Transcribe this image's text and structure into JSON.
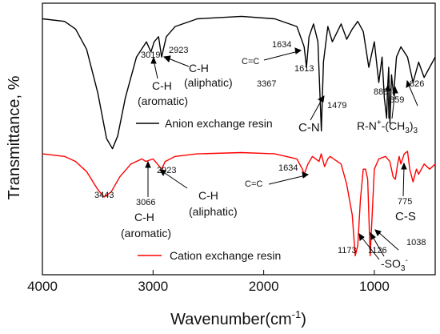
{
  "chart_data": {
    "type": "line",
    "xlabel": "Wavenumber(cm-1)",
    "xlabel_main": "Wavenumber(cm",
    "xlabel_sup": "-1",
    "xlabel_close": ")",
    "ylabel": "Transmittance, %",
    "xlim": [
      4000,
      450
    ],
    "x_ticks": [
      4000,
      3000,
      2000,
      1000
    ],
    "x_tick_labels": [
      "4000",
      "3000",
      "2000",
      "1000"
    ],
    "y_ticks_shown": false,
    "grid": false,
    "legend_placement": "inline, below each curve",
    "series": [
      {
        "name": "Anion exchange resin",
        "color": "#000000",
        "points": [
          [
            4000,
            0.03
          ],
          [
            3800,
            0.04
          ],
          [
            3700,
            0.07
          ],
          [
            3600,
            0.15
          ],
          [
            3500,
            0.32
          ],
          [
            3420,
            0.5
          ],
          [
            3367,
            0.54
          ],
          [
            3320,
            0.49
          ],
          [
            3250,
            0.34
          ],
          [
            3150,
            0.18
          ],
          [
            3060,
            0.12
          ],
          [
            3019,
            0.16
          ],
          [
            2990,
            0.12
          ],
          [
            2950,
            0.1
          ],
          [
            2923,
            0.18
          ],
          [
            2880,
            0.1
          ],
          [
            2800,
            0.06
          ],
          [
            2600,
            0.03
          ],
          [
            2200,
            0.02
          ],
          [
            1900,
            0.03
          ],
          [
            1700,
            0.06
          ],
          [
            1650,
            0.12
          ],
          [
            1634,
            0.14
          ],
          [
            1613,
            0.22
          ],
          [
            1590,
            0.1
          ],
          [
            1550,
            0.05
          ],
          [
            1510,
            0.12
          ],
          [
            1479,
            0.47
          ],
          [
            1460,
            0.2
          ],
          [
            1420,
            0.06
          ],
          [
            1380,
            0.12
          ],
          [
            1300,
            0.05
          ],
          [
            1250,
            0.11
          ],
          [
            1200,
            0.07
          ],
          [
            1150,
            0.04
          ],
          [
            1100,
            0.08
          ],
          [
            1050,
            0.22
          ],
          [
            1000,
            0.12
          ],
          [
            960,
            0.28
          ],
          [
            930,
            0.18
          ],
          [
            910,
            0.34
          ],
          [
            889,
            0.42
          ],
          [
            880,
            0.3
          ],
          [
            870,
            0.22
          ],
          [
            859,
            0.44
          ],
          [
            845,
            0.25
          ],
          [
            826,
            0.33
          ],
          [
            800,
            0.18
          ],
          [
            760,
            0.14
          ],
          [
            700,
            0.18
          ],
          [
            650,
            0.28
          ],
          [
            600,
            0.2
          ],
          [
            550,
            0.26
          ],
          [
            500,
            0.22
          ],
          [
            450,
            0.18
          ]
        ],
        "annotations": [
          {
            "label": "3367",
            "x": 3367
          },
          {
            "label": "3019",
            "x": 3019
          },
          {
            "label": "2923",
            "x": 2923
          },
          {
            "label": "C-H",
            "note": "aromatic"
          },
          {
            "label": "(aromatic)"
          },
          {
            "label": "C-H",
            "note": "aliphatic"
          },
          {
            "label": "(aliphatic)"
          },
          {
            "label": "C=C"
          },
          {
            "label": "1634",
            "x": 1634
          },
          {
            "label": "1613",
            "x": 1613
          },
          {
            "label": "1479",
            "x": 1479
          },
          {
            "label": "C-N"
          },
          {
            "label": "889",
            "x": 889
          },
          {
            "label": "859",
            "x": 859
          },
          {
            "label": "826",
            "x": 826
          },
          {
            "label": "R-N+-(CH3)3"
          }
        ]
      },
      {
        "name": "Cation exchange resin",
        "color": "#ff0000",
        "points": [
          [
            4000,
            0.56
          ],
          [
            3800,
            0.57
          ],
          [
            3700,
            0.59
          ],
          [
            3600,
            0.63
          ],
          [
            3500,
            0.7
          ],
          [
            3443,
            0.73
          ],
          [
            3380,
            0.71
          ],
          [
            3300,
            0.65
          ],
          [
            3200,
            0.6
          ],
          [
            3100,
            0.58
          ],
          [
            3066,
            0.59
          ],
          [
            3000,
            0.58
          ],
          [
            2960,
            0.6
          ],
          [
            2923,
            0.62
          ],
          [
            2890,
            0.59
          ],
          [
            2800,
            0.57
          ],
          [
            2600,
            0.56
          ],
          [
            2200,
            0.555
          ],
          [
            1900,
            0.56
          ],
          [
            1700,
            0.58
          ],
          [
            1650,
            0.62
          ],
          [
            1634,
            0.64
          ],
          [
            1600,
            0.6
          ],
          [
            1560,
            0.57
          ],
          [
            1500,
            0.59
          ],
          [
            1480,
            0.56
          ],
          [
            1450,
            0.61
          ],
          [
            1420,
            0.58
          ],
          [
            1400,
            0.57
          ],
          [
            1300,
            0.6
          ],
          [
            1250,
            0.68
          ],
          [
            1200,
            0.8
          ],
          [
            1173,
            0.96
          ],
          [
            1150,
            0.92
          ],
          [
            1126,
            0.74
          ],
          [
            1100,
            0.62
          ],
          [
            1080,
            0.62
          ],
          [
            1060,
            0.66
          ],
          [
            1038,
            0.96
          ],
          [
            1020,
            0.8
          ],
          [
            1000,
            0.62
          ],
          [
            960,
            0.58
          ],
          [
            900,
            0.57
          ],
          [
            860,
            0.59
          ],
          [
            830,
            0.65
          ],
          [
            810,
            0.66
          ],
          [
            790,
            0.6
          ],
          [
            775,
            0.57
          ],
          [
            760,
            0.6
          ],
          [
            730,
            0.56
          ],
          [
            700,
            0.55
          ],
          [
            680,
            0.62
          ],
          [
            650,
            0.67
          ],
          [
            620,
            0.62
          ],
          [
            600,
            0.64
          ],
          [
            550,
            0.6
          ],
          [
            500,
            0.62
          ],
          [
            450,
            0.6
          ]
        ],
        "annotations": [
          {
            "label": "3443",
            "x": 3443
          },
          {
            "label": "3066",
            "x": 3066
          },
          {
            "label": "2923",
            "x": 2923
          },
          {
            "label": "C-H",
            "note": "aromatic"
          },
          {
            "label": "(aromatic)"
          },
          {
            "label": "C-H",
            "note": "aliphatic"
          },
          {
            "label": "(aliphatic)"
          },
          {
            "label": "C=C"
          },
          {
            "label": "1634",
            "x": 1634
          },
          {
            "label": "775",
            "x": 775
          },
          {
            "label": "C-S"
          },
          {
            "label": "1038",
            "x": 1038
          },
          {
            "label": "1173",
            "x": 1173
          },
          {
            "label": "1126",
            "x": 1126
          },
          {
            "label": "-SO3-"
          }
        ]
      }
    ]
  }
}
